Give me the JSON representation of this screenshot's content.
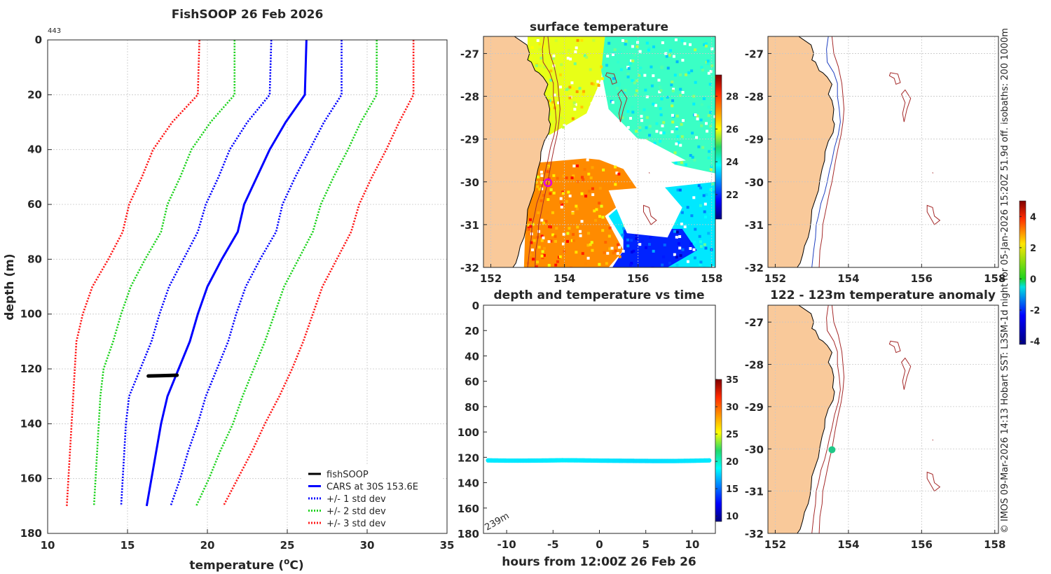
{
  "colors": {
    "land": "#f9c99a",
    "text": "#262626",
    "isobath": "#a52a2a",
    "coast": "#000000"
  },
  "side_note": "© IMOS 09-Mar-2026 14:13 Hobart SST: L3SM-1d night for 05-Jan-2026 15:20Z 51.9d off. isobaths: 200  1000m",
  "chart_data": [
    {
      "id": "profile",
      "type": "line",
      "title": "FishSOOP 26 Feb 2026",
      "corner_label": "443",
      "xlabel_main": "temperature (",
      "xlabel_sup": "o",
      "xlabel_end": "C)",
      "ylabel": "depth (m)",
      "xlim": [
        10,
        35
      ],
      "ylim": [
        180,
        0
      ],
      "xticks": [
        "10",
        "15",
        "20",
        "25",
        "30",
        "35"
      ],
      "yticks": [
        "0",
        "20",
        "40",
        "60",
        "80",
        "100",
        "120",
        "140",
        "160",
        "180"
      ],
      "depth": [
        0,
        20,
        30,
        40,
        50,
        60,
        70,
        80,
        90,
        100,
        110,
        120,
        130,
        140,
        150,
        160,
        170
      ],
      "series": [
        {
          "name": "CARS at 30S 153.6E",
          "color": "#0000ff",
          "style": "solid",
          "temp": [
            26.2,
            26.1,
            24.9,
            23.9,
            23.1,
            22.3,
            21.9,
            20.9,
            20.0,
            19.4,
            18.9,
            18.2,
            17.5,
            17.1,
            16.8,
            16.5,
            16.2
          ]
        },
        {
          "name": "+1 std",
          "color": "#0000ff",
          "style": "dot",
          "temp": [
            28.4,
            28.4,
            27.3,
            26.4,
            25.5,
            24.7,
            24.3,
            23.3,
            22.4,
            21.8,
            21.3,
            20.6,
            19.9,
            19.4,
            18.8,
            18.3,
            17.7
          ]
        },
        {
          "name": "-1 std",
          "color": "#0000ff",
          "style": "dot",
          "temp": [
            24.0,
            23.9,
            22.5,
            21.4,
            20.7,
            19.9,
            19.4,
            18.5,
            17.6,
            17.0,
            16.5,
            15.8,
            15.1,
            14.9,
            14.8,
            14.7,
            14.6
          ]
        },
        {
          "name": "+2 std",
          "color": "#1fd31f",
          "style": "dot",
          "temp": [
            30.6,
            30.6,
            29.6,
            28.8,
            27.9,
            27.1,
            26.6,
            25.7,
            24.8,
            24.2,
            23.6,
            22.9,
            22.2,
            21.6,
            20.8,
            20.1,
            19.3
          ]
        },
        {
          "name": "-2 std",
          "color": "#1fd31f",
          "style": "dot",
          "temp": [
            21.7,
            21.7,
            20.2,
            19.0,
            18.3,
            17.5,
            17.1,
            16.1,
            15.2,
            14.6,
            14.1,
            13.5,
            13.3,
            13.2,
            13.1,
            13.0,
            12.9
          ]
        },
        {
          "name": "+3 std",
          "color": "#ff1a1a",
          "style": "dot",
          "temp": [
            32.9,
            32.9,
            32.0,
            31.2,
            30.3,
            29.5,
            29.0,
            28.1,
            27.2,
            26.6,
            26.0,
            25.3,
            24.5,
            23.6,
            22.8,
            21.9,
            21.0
          ]
        },
        {
          "name": "-3 std",
          "color": "#ff1a1a",
          "style": "dot",
          "temp": [
            19.5,
            19.4,
            17.8,
            16.6,
            15.9,
            15.1,
            14.7,
            13.8,
            12.8,
            12.2,
            11.8,
            11.7,
            11.6,
            11.5,
            11.4,
            11.3,
            11.2
          ]
        }
      ],
      "fishsoop": {
        "temp": [
          16.3,
          17.0,
          17.6,
          18.1
        ],
        "depth": [
          122.6,
          122.5,
          122.4,
          122.3
        ],
        "color": "#000000"
      },
      "legend": [
        {
          "label": "fishSOOP",
          "color": "#000000",
          "style": "solid"
        },
        {
          "label": "CARS at 30S 153.6E",
          "color": "#0000ff",
          "style": "solid"
        },
        {
          "label": "+/- 1 std dev",
          "color": "#0000ff",
          "style": "dot"
        },
        {
          "label": "+/- 2 std dev",
          "color": "#1fd31f",
          "style": "dot"
        },
        {
          "label": "+/- 3 std dev",
          "color": "#ff1a1a",
          "style": "dot"
        }
      ]
    },
    {
      "id": "sst_map",
      "type": "heatmap",
      "title": "surface temperature",
      "xlim": [
        151.8,
        158.1
      ],
      "ylim": [
        -32,
        -26.6
      ],
      "xticks": [
        "152",
        "154",
        "156",
        "158"
      ],
      "yticks": [
        "-27",
        "-28",
        "-29",
        "-30",
        "-31",
        "-32"
      ],
      "colorbar": {
        "min": 20.5,
        "max": 29.3,
        "ticks": [
          "22",
          "24",
          "26",
          "28"
        ]
      },
      "regions": [
        {
          "name": "north-warm",
          "temp": 25.8,
          "pts": [
            [
              153.0,
              -26.6
            ],
            [
              155.1,
              -26.6
            ],
            [
              155.0,
              -27.6
            ],
            [
              154.6,
              -28.4
            ],
            [
              153.6,
              -28.9
            ],
            [
              153.0,
              -28.9
            ]
          ]
        },
        {
          "name": "east-cool",
          "temp": 24.3,
          "pts": [
            [
              155.1,
              -26.6
            ],
            [
              158.1,
              -26.6
            ],
            [
              158.1,
              -29.8
            ],
            [
              157.0,
              -29.6
            ],
            [
              156.0,
              -29.0
            ],
            [
              155.2,
              -28.3
            ],
            [
              155.0,
              -27.4
            ]
          ]
        },
        {
          "name": "south-warm",
          "temp": 27.0,
          "pts": [
            [
              153.0,
              -29.5
            ],
            [
              154.7,
              -29.4
            ],
            [
              155.6,
              -29.7
            ],
            [
              156.0,
              -30.2
            ],
            [
              155.1,
              -30.8
            ],
            [
              155.6,
              -31.6
            ],
            [
              155.2,
              -32
            ],
            [
              152.9,
              -32
            ]
          ]
        },
        {
          "name": "south-east-mid",
          "temp": 23.6,
          "pts": [
            [
              156.0,
              -30.2
            ],
            [
              158.1,
              -30.0
            ],
            [
              158.1,
              -32
            ],
            [
              155.3,
              -32
            ],
            [
              155.7,
              -31.5
            ],
            [
              155.2,
              -30.8
            ]
          ]
        },
        {
          "name": "south-east-cold",
          "temp": 21.9,
          "pts": [
            [
              155.6,
              -31.1
            ],
            [
              157.2,
              -31.1
            ],
            [
              157.6,
              -31.6
            ],
            [
              156.8,
              -32
            ],
            [
              155.3,
              -32
            ],
            [
              155.6,
              -31.6
            ]
          ]
        }
      ],
      "gaps": [
        {
          "pts": [
            [
              153.3,
              -28.9
            ],
            [
              154.6,
              -28.9
            ],
            [
              156.2,
              -29.0
            ],
            [
              157.3,
              -29.5
            ],
            [
              156.2,
              -29.6
            ],
            [
              154.6,
              -29.45
            ],
            [
              153.3,
              -29.55
            ]
          ]
        },
        {
          "pts": [
            [
              155.2,
              -30.2
            ],
            [
              156.7,
              -30.1
            ],
            [
              157.2,
              -30.6
            ],
            [
              156.8,
              -31.3
            ],
            [
              155.7,
              -31.2
            ]
          ]
        }
      ],
      "marker": {
        "lon": 153.55,
        "lat": -30.02,
        "color": "#e000e0"
      }
    },
    {
      "id": "time_series",
      "type": "scatter",
      "title": "depth and temperature vs time",
      "xlabel": "hours from 12:00Z 26 Feb 26",
      "xlim": [
        -12.5,
        12.5
      ],
      "ylim": [
        180,
        0
      ],
      "xticks": [
        "-10",
        "-5",
        "0",
        "5",
        "10"
      ],
      "yticks": [
        "0",
        "20",
        "40",
        "60",
        "80",
        "100",
        "120",
        "140",
        "160",
        "180"
      ],
      "annotation": "239m",
      "colorbar": {
        "min": 9,
        "max": 35,
        "ticks": [
          "10",
          "15",
          "20",
          "25",
          "30",
          "35"
        ]
      },
      "points": {
        "hours": [
          -12,
          -10,
          -8,
          -6,
          -4,
          -2,
          0,
          2,
          4,
          6,
          8,
          10,
          12
        ],
        "depth": [
          122.4,
          122.6,
          122.6,
          122.5,
          122.3,
          122.4,
          122.6,
          122.7,
          122.8,
          122.9,
          122.9,
          122.7,
          122.4
        ],
        "temp": [
          18.2,
          18.2,
          18.1,
          18.2,
          18.3,
          18.2,
          18.1,
          18.0,
          17.9,
          17.9,
          18.0,
          18.1,
          18.2
        ]
      }
    },
    {
      "id": "isobath_map",
      "type": "heatmap",
      "xlim": [
        151.8,
        158.1
      ],
      "ylim": [
        -32,
        -26.6
      ],
      "xticks": [
        "152",
        "154",
        "156",
        "158"
      ],
      "yticks": [
        "-27",
        "-28",
        "-29",
        "-30",
        "-31",
        "-32"
      ]
    },
    {
      "id": "anomaly_map",
      "type": "scatter",
      "title": "122 - 123m temperature anomaly",
      "xlim": [
        151.8,
        158.1
      ],
      "ylim": [
        -32,
        -26.6
      ],
      "xticks": [
        "152",
        "154",
        "156",
        "158"
      ],
      "yticks": [
        "-27",
        "-28",
        "-29",
        "-30",
        "-31",
        "-32"
      ],
      "colorbar": {
        "min": -4.2,
        "max": 5.0,
        "ticks": [
          "-4",
          "-2",
          "0",
          "2",
          "4"
        ]
      },
      "point": {
        "lon": 153.55,
        "lat": -30.02,
        "anomaly": -0.1
      }
    }
  ]
}
